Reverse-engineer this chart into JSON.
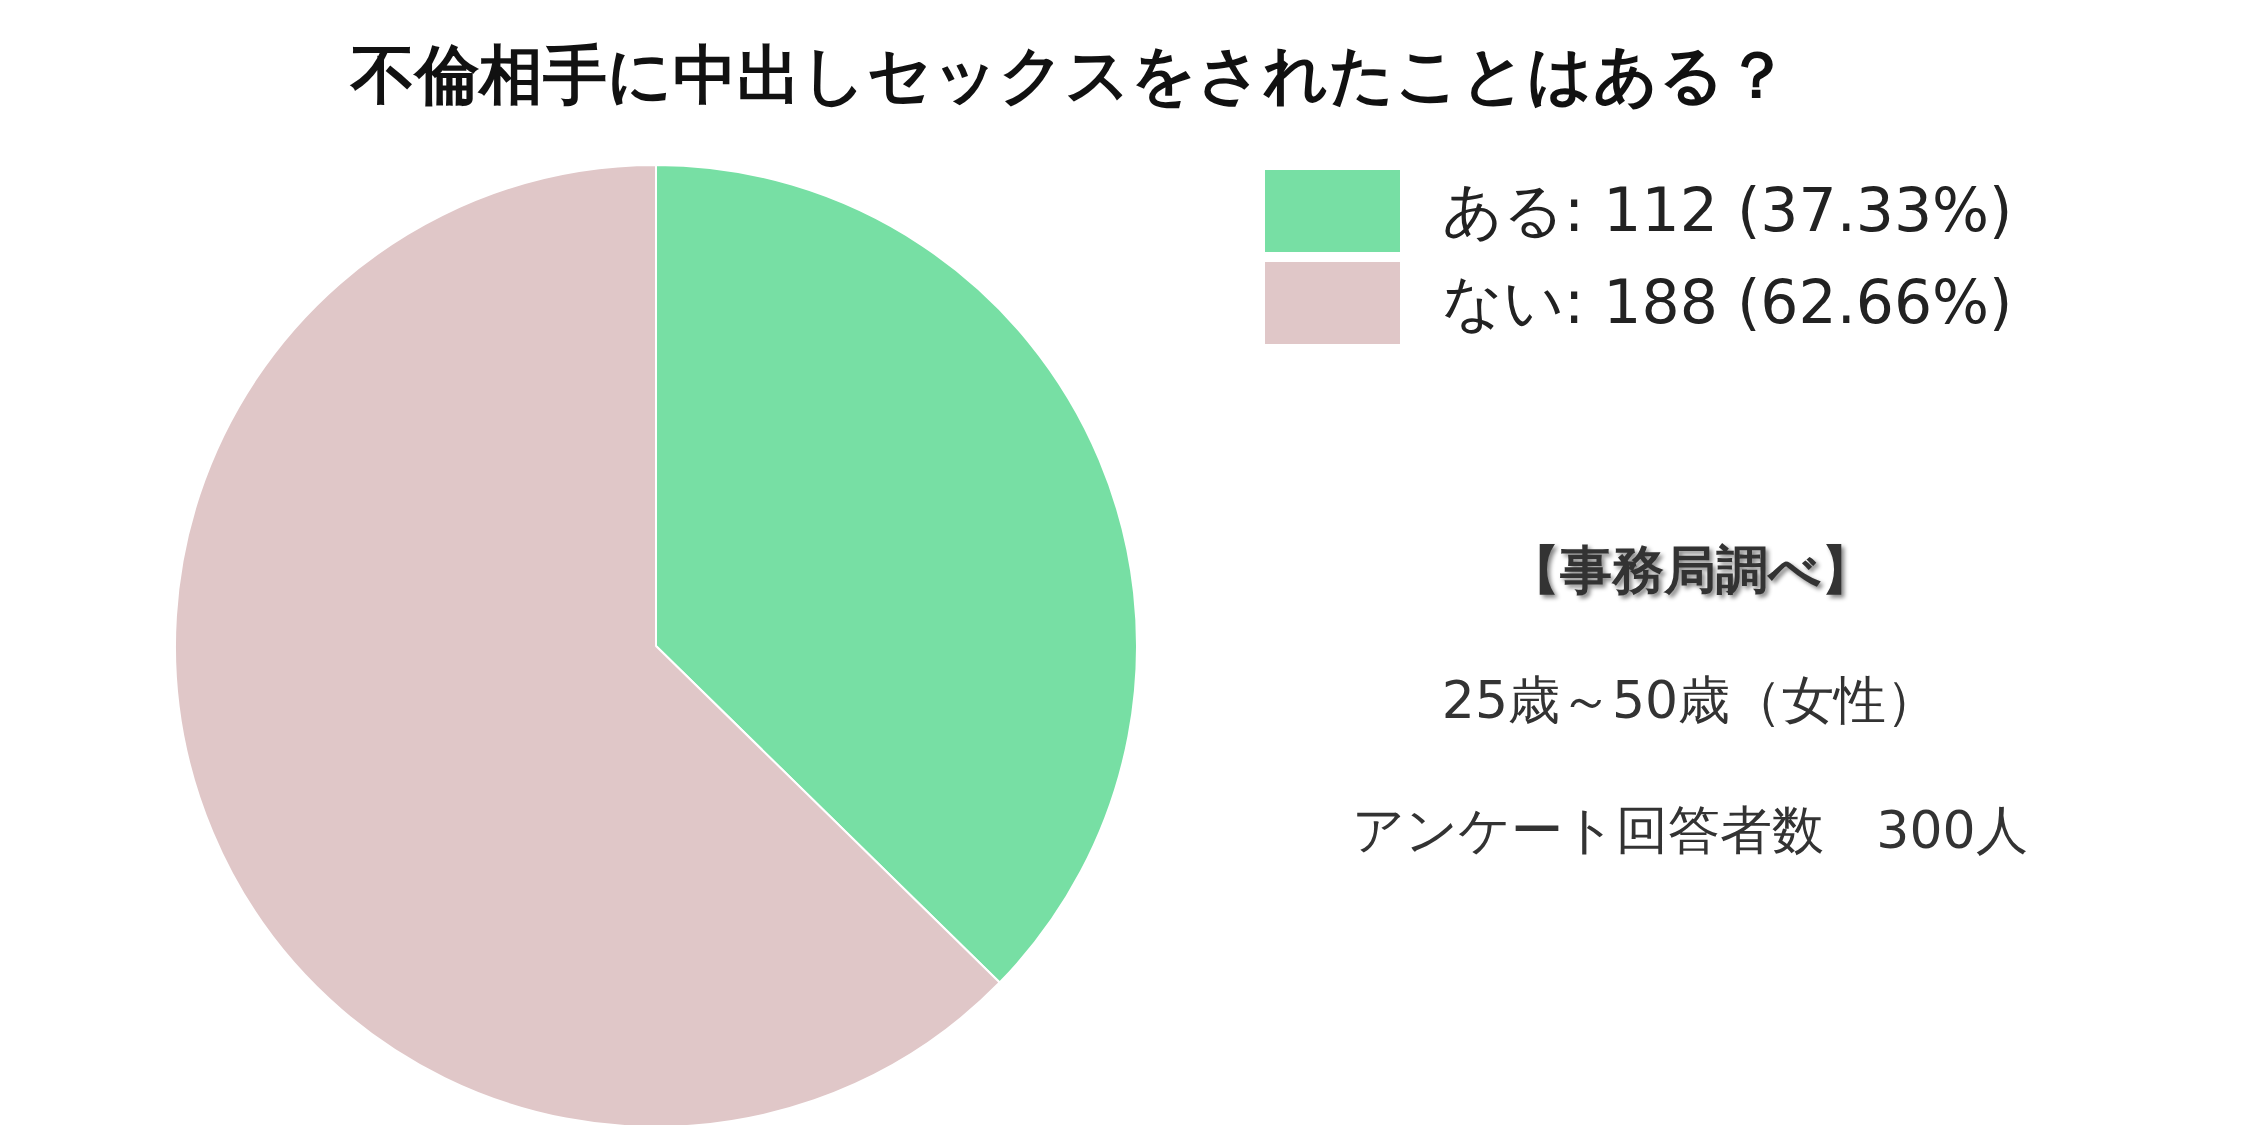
{
  "chart_data": {
    "type": "pie",
    "title": "不倫相手に中出しセックスをされたことはある？",
    "categories": [
      "ある",
      "ない"
    ],
    "values": [
      112,
      188
    ],
    "value_labels": [
      "112 (37.33%)",
      "188 (62.66%)"
    ],
    "colors": [
      "#77dfa4",
      "#e0c7c8"
    ],
    "legend": "top right",
    "annotations": [
      "【事務局調べ】",
      "25歳～50歳（女性）",
      "アンケート回答者数　300人"
    ]
  }
}
